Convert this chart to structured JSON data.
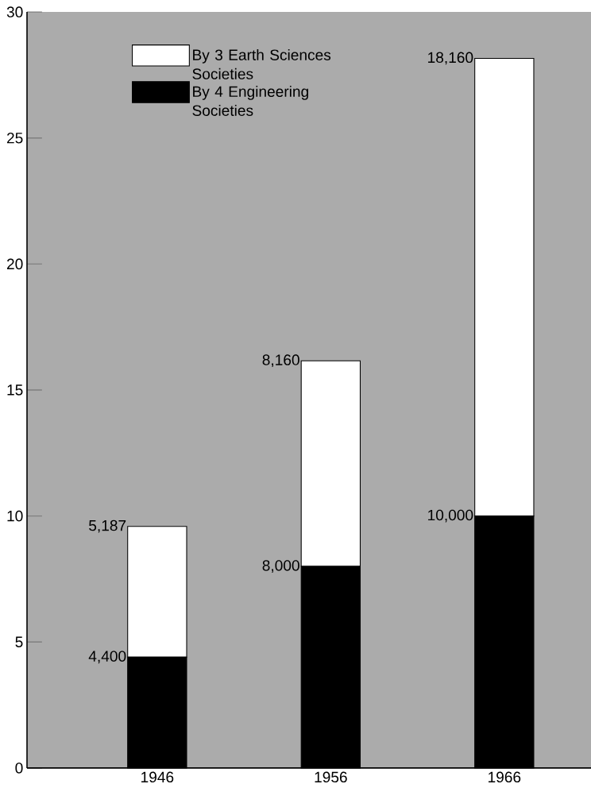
{
  "chart_data": {
    "type": "bar",
    "stacked": true,
    "categories": [
      "1946",
      "1956",
      "1966"
    ],
    "series": [
      {
        "name": "By 4 Engineering Societies",
        "color": "#000000",
        "values": [
          4.4,
          8,
          10
        ]
      },
      {
        "name": "By 3 Earth Sciences Societies",
        "color": "#ffffff",
        "values": [
          5.187,
          8.16,
          18.16
        ]
      }
    ],
    "ylim": [
      0,
      30
    ],
    "yticks": [
      0,
      5,
      10,
      15,
      20,
      25,
      30
    ],
    "annotations": [
      {
        "text": "4,400",
        "x": "1946",
        "y": 4.4
      },
      {
        "text": "5,187",
        "x": "1946",
        "y": 9.587
      },
      {
        "text": "8,000",
        "x": "1956",
        "y": 8
      },
      {
        "text": "8,160",
        "x": "1956",
        "y": 16.16
      },
      {
        "text": "10,000",
        "x": "1966",
        "y": 10
      },
      {
        "text": "18,160",
        "x": "1966",
        "y": 28.16
      }
    ],
    "legend": "top left"
  }
}
